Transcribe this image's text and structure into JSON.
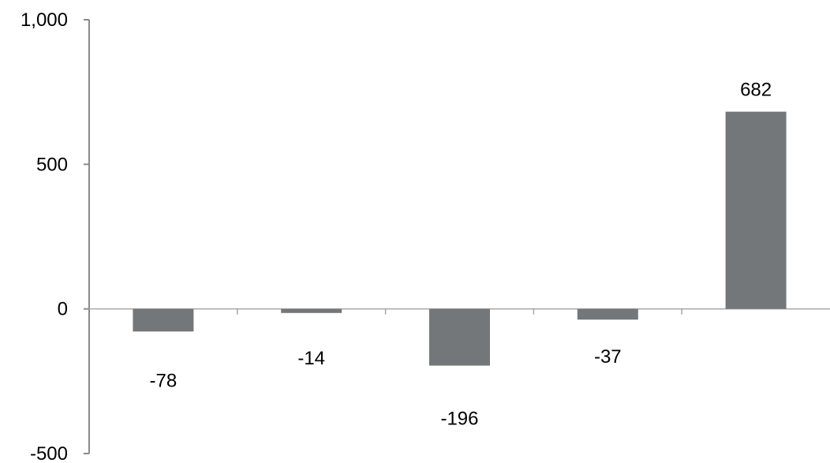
{
  "chart_data": {
    "type": "bar",
    "categories": [
      "",
      "",
      "",
      "",
      ""
    ],
    "values": [
      -78,
      -14,
      -196,
      -37,
      682
    ],
    "data_labels": [
      "-78",
      "-14",
      "-196",
      "-37",
      "682"
    ],
    "ylim": [
      -500,
      1000
    ],
    "y_ticks": [
      1000,
      500,
      0,
      -500
    ],
    "y_tick_labels": [
      "1,000",
      "500",
      "0",
      "-500"
    ],
    "bar_color": "#747779",
    "grid": false,
    "legend": "none",
    "title": "",
    "xlabel": "",
    "ylabel": ""
  }
}
